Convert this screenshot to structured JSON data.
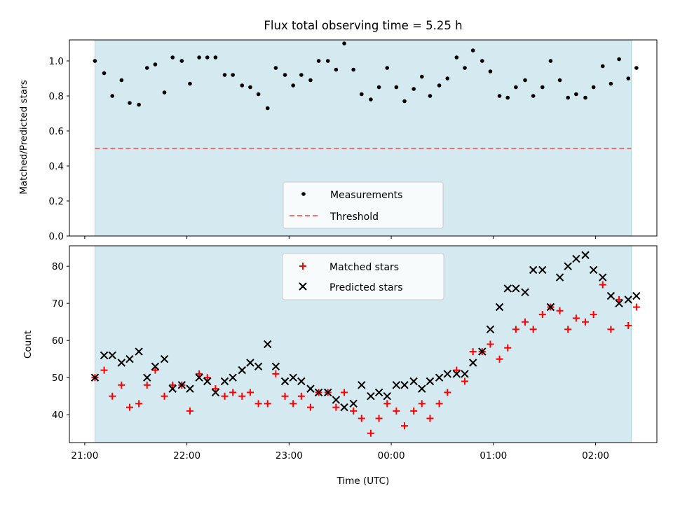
{
  "chart_data": [
    {
      "type": "scatter",
      "title": "Flux total observing time = 5.25 h",
      "xlabel": "",
      "ylabel": "Matched/Predicted stars",
      "ylim": [
        0,
        1.12
      ],
      "yticks": [
        "0.0",
        "0.2",
        "0.4",
        "0.6",
        "0.8",
        "1.0"
      ],
      "x_unit": "hours after 21:00 UTC",
      "xlim": [
        -0.15,
        5.6
      ],
      "observing_window": [
        0.1,
        5.35
      ],
      "window_color": "#d4e9f0",
      "legend_position": "lower center",
      "series": [
        {
          "name": "Measurements",
          "marker": "dot",
          "color": "#000000",
          "points": [
            [
              0.1,
              1.0
            ],
            [
              0.19,
              0.93
            ],
            [
              0.27,
              0.8
            ],
            [
              0.36,
              0.89
            ],
            [
              0.44,
              0.76
            ],
            [
              0.53,
              0.75
            ],
            [
              0.61,
              0.96
            ],
            [
              0.69,
              0.98
            ],
            [
              0.78,
              0.82
            ],
            [
              0.86,
              1.02
            ],
            [
              0.95,
              1.0
            ],
            [
              1.03,
              0.87
            ],
            [
              1.12,
              1.02
            ],
            [
              1.2,
              1.02
            ],
            [
              1.28,
              1.02
            ],
            [
              1.37,
              0.92
            ],
            [
              1.45,
              0.92
            ],
            [
              1.54,
              0.86
            ],
            [
              1.62,
              0.85
            ],
            [
              1.7,
              0.81
            ],
            [
              1.79,
              0.73
            ],
            [
              1.87,
              0.96
            ],
            [
              1.96,
              0.92
            ],
            [
              2.04,
              0.86
            ],
            [
              2.12,
              0.92
            ],
            [
              2.21,
              0.89
            ],
            [
              2.29,
              1.0
            ],
            [
              2.38,
              1.0
            ],
            [
              2.46,
              0.95
            ],
            [
              2.54,
              1.1
            ],
            [
              2.63,
              0.95
            ],
            [
              2.71,
              0.81
            ],
            [
              2.8,
              0.78
            ],
            [
              2.88,
              0.85
            ],
            [
              2.96,
              0.96
            ],
            [
              3.05,
              0.85
            ],
            [
              3.13,
              0.77
            ],
            [
              3.22,
              0.84
            ],
            [
              3.3,
              0.91
            ],
            [
              3.38,
              0.8
            ],
            [
              3.47,
              0.86
            ],
            [
              3.55,
              0.9
            ],
            [
              3.64,
              1.02
            ],
            [
              3.72,
              0.96
            ],
            [
              3.8,
              1.06
            ],
            [
              3.89,
              1.0
            ],
            [
              3.97,
              0.94
            ],
            [
              4.06,
              0.8
            ],
            [
              4.14,
              0.79
            ],
            [
              4.22,
              0.85
            ],
            [
              4.31,
              0.89
            ],
            [
              4.39,
              0.8
            ],
            [
              4.48,
              0.85
            ],
            [
              4.56,
              1.0
            ],
            [
              4.65,
              0.89
            ],
            [
              4.73,
              0.79
            ],
            [
              4.81,
              0.81
            ],
            [
              4.9,
              0.79
            ],
            [
              4.98,
              0.85
            ],
            [
              5.07,
              0.97
            ],
            [
              5.15,
              0.87
            ],
            [
              5.23,
              1.01
            ],
            [
              5.32,
              0.9
            ],
            [
              5.4,
              0.96
            ]
          ]
        },
        {
          "name": "Threshold",
          "marker": "dashed-line",
          "color": "#f07070",
          "points": [
            [
              0.1,
              0.5
            ],
            [
              5.35,
              0.5
            ]
          ]
        }
      ]
    },
    {
      "type": "scatter",
      "title": "",
      "xlabel": "Time (UTC)",
      "ylabel": "Count",
      "ylim": [
        32.5,
        85.5
      ],
      "yticks": [
        "40",
        "50",
        "60",
        "70",
        "80"
      ],
      "xticks": [
        {
          "hour": 0,
          "label": "21:00"
        },
        {
          "hour": 1,
          "label": "22:00"
        },
        {
          "hour": 2,
          "label": "23:00"
        },
        {
          "hour": 3,
          "label": "00:00"
        },
        {
          "hour": 4,
          "label": "01:00"
        },
        {
          "hour": 5,
          "label": "02:00"
        }
      ],
      "legend_position": "upper center",
      "series": [
        {
          "name": "Matched stars",
          "marker": "plus",
          "color": "#ff0000",
          "points": [
            [
              0.1,
              50
            ],
            [
              0.19,
              52
            ],
            [
              0.27,
              45
            ],
            [
              0.36,
              48
            ],
            [
              0.44,
              42
            ],
            [
              0.53,
              43
            ],
            [
              0.61,
              48
            ],
            [
              0.69,
              52
            ],
            [
              0.78,
              45
            ],
            [
              0.86,
              48
            ],
            [
              0.95,
              48
            ],
            [
              1.03,
              41
            ],
            [
              1.12,
              51
            ],
            [
              1.2,
              50
            ],
            [
              1.28,
              47
            ],
            [
              1.37,
              45
            ],
            [
              1.45,
              46
            ],
            [
              1.54,
              45
            ],
            [
              1.62,
              46
            ],
            [
              1.7,
              43
            ],
            [
              1.79,
              43
            ],
            [
              1.87,
              51
            ],
            [
              1.96,
              45
            ],
            [
              2.04,
              43
            ],
            [
              2.12,
              45
            ],
            [
              2.21,
              42
            ],
            [
              2.29,
              46
            ],
            [
              2.38,
              46
            ],
            [
              2.46,
              42
            ],
            [
              2.54,
              46
            ],
            [
              2.63,
              41
            ],
            [
              2.71,
              39
            ],
            [
              2.8,
              35
            ],
            [
              2.88,
              39
            ],
            [
              2.96,
              43
            ],
            [
              3.05,
              41
            ],
            [
              3.13,
              37
            ],
            [
              3.22,
              41
            ],
            [
              3.3,
              43
            ],
            [
              3.38,
              39
            ],
            [
              3.47,
              43
            ],
            [
              3.55,
              46
            ],
            [
              3.64,
              52
            ],
            [
              3.72,
              49
            ],
            [
              3.8,
              57
            ],
            [
              3.89,
              57
            ],
            [
              3.97,
              59
            ],
            [
              4.06,
              55
            ],
            [
              4.14,
              58
            ],
            [
              4.22,
              63
            ],
            [
              4.31,
              65
            ],
            [
              4.39,
              63
            ],
            [
              4.48,
              67
            ],
            [
              4.56,
              69
            ],
            [
              4.65,
              68
            ],
            [
              4.73,
              63
            ],
            [
              4.81,
              66
            ],
            [
              4.9,
              65
            ],
            [
              4.98,
              67
            ],
            [
              5.07,
              75
            ],
            [
              5.15,
              63
            ],
            [
              5.23,
              71
            ],
            [
              5.32,
              64
            ],
            [
              5.4,
              69
            ]
          ]
        },
        {
          "name": "Predicted stars",
          "marker": "x",
          "color": "#000000",
          "points": [
            [
              0.1,
              50
            ],
            [
              0.19,
              56
            ],
            [
              0.27,
              56
            ],
            [
              0.36,
              54
            ],
            [
              0.44,
              55
            ],
            [
              0.53,
              57
            ],
            [
              0.61,
              50
            ],
            [
              0.69,
              53
            ],
            [
              0.78,
              55
            ],
            [
              0.86,
              47
            ],
            [
              0.95,
              48
            ],
            [
              1.03,
              47
            ],
            [
              1.12,
              50
            ],
            [
              1.2,
              49
            ],
            [
              1.28,
              46
            ],
            [
              1.37,
              49
            ],
            [
              1.45,
              50
            ],
            [
              1.54,
              52
            ],
            [
              1.62,
              54
            ],
            [
              1.7,
              53
            ],
            [
              1.79,
              59
            ],
            [
              1.87,
              53
            ],
            [
              1.96,
              49
            ],
            [
              2.04,
              50
            ],
            [
              2.12,
              49
            ],
            [
              2.21,
              47
            ],
            [
              2.29,
              46
            ],
            [
              2.38,
              46
            ],
            [
              2.46,
              44
            ],
            [
              2.54,
              42
            ],
            [
              2.63,
              43
            ],
            [
              2.71,
              48
            ],
            [
              2.8,
              45
            ],
            [
              2.88,
              46
            ],
            [
              2.96,
              45
            ],
            [
              3.05,
              48
            ],
            [
              3.13,
              48
            ],
            [
              3.22,
              49
            ],
            [
              3.3,
              47
            ],
            [
              3.38,
              49
            ],
            [
              3.47,
              50
            ],
            [
              3.55,
              51
            ],
            [
              3.64,
              51
            ],
            [
              3.72,
              51
            ],
            [
              3.8,
              54
            ],
            [
              3.89,
              57
            ],
            [
              3.97,
              63
            ],
            [
              4.06,
              69
            ],
            [
              4.14,
              74
            ],
            [
              4.22,
              74
            ],
            [
              4.31,
              73
            ],
            [
              4.39,
              79
            ],
            [
              4.48,
              79
            ],
            [
              4.56,
              69
            ],
            [
              4.65,
              77
            ],
            [
              4.73,
              80
            ],
            [
              4.81,
              82
            ],
            [
              4.9,
              83
            ],
            [
              4.98,
              79
            ],
            [
              5.07,
              77
            ],
            [
              5.15,
              72
            ],
            [
              5.23,
              70
            ],
            [
              5.32,
              71
            ],
            [
              5.4,
              72
            ]
          ]
        }
      ]
    }
  ]
}
